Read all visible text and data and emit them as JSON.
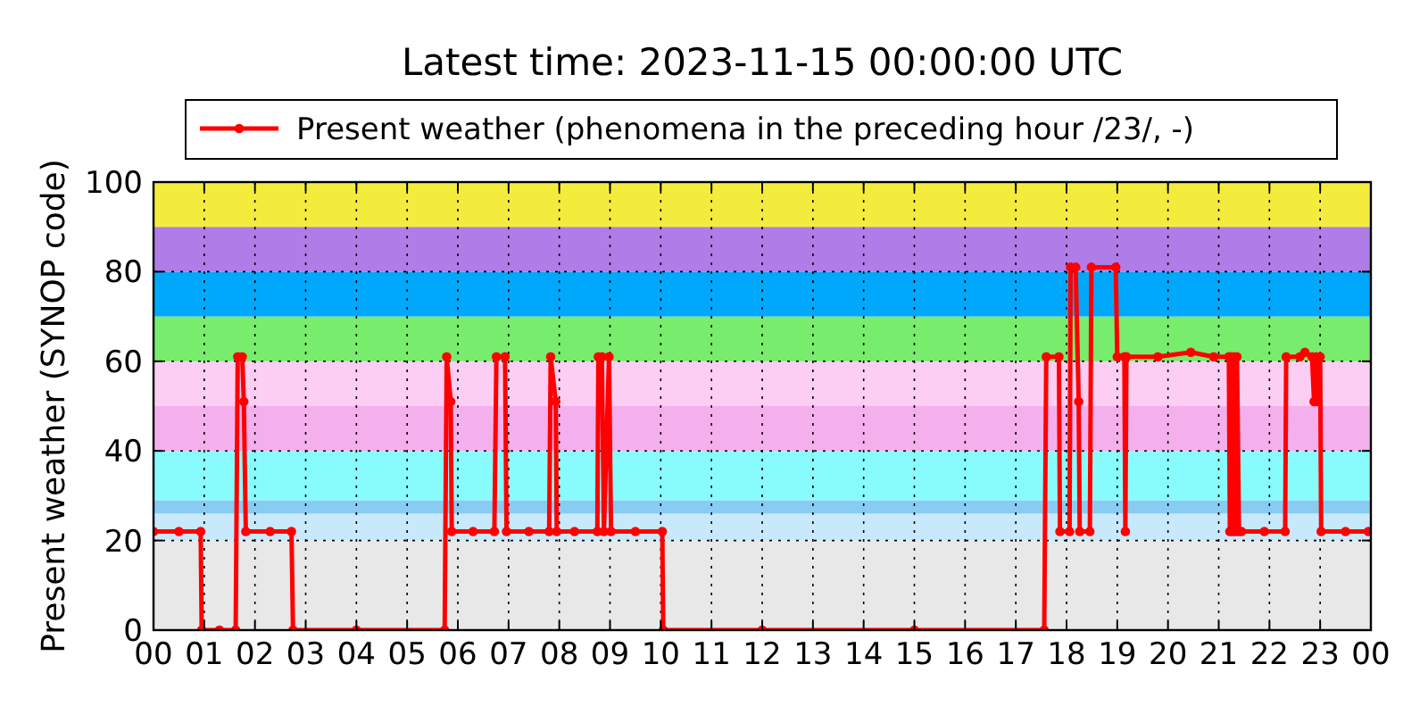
{
  "chart_data": {
    "type": "line",
    "title": "Latest time: 2023-11-15 00:00:00 UTC",
    "ylabel": "Present weather (SYNOP code)",
    "xlim": [
      0,
      24
    ],
    "ylim": [
      0,
      100
    ],
    "yticks": [
      0,
      20,
      40,
      60,
      80,
      100
    ],
    "xticks": [
      {
        "value": 0,
        "label": "00"
      },
      {
        "value": 1,
        "label": "01"
      },
      {
        "value": 2,
        "label": "02"
      },
      {
        "value": 3,
        "label": "03"
      },
      {
        "value": 4,
        "label": "04"
      },
      {
        "value": 5,
        "label": "05"
      },
      {
        "value": 6,
        "label": "06"
      },
      {
        "value": 7,
        "label": "07"
      },
      {
        "value": 8,
        "label": "08"
      },
      {
        "value": 9,
        "label": "09"
      },
      {
        "value": 10,
        "label": "10"
      },
      {
        "value": 11,
        "label": "11"
      },
      {
        "value": 12,
        "label": "12"
      },
      {
        "value": 13,
        "label": "13"
      },
      {
        "value": 14,
        "label": "14"
      },
      {
        "value": 15,
        "label": "15"
      },
      {
        "value": 16,
        "label": "16"
      },
      {
        "value": 17,
        "label": "17"
      },
      {
        "value": 18,
        "label": "18"
      },
      {
        "value": 19,
        "label": "19"
      },
      {
        "value": 20,
        "label": "20"
      },
      {
        "value": 21,
        "label": "21"
      },
      {
        "value": 22,
        "label": "22"
      },
      {
        "value": 23,
        "label": "23"
      },
      {
        "value": 24,
        "label": "00"
      }
    ],
    "grid": true,
    "legend": "top",
    "marker": "circle",
    "line_style": "solid",
    "bands": [
      {
        "axis": "y",
        "from": 0,
        "to": 20,
        "color": "#e8e8e8"
      },
      {
        "axis": "y",
        "from": 20,
        "to": 26,
        "color": "#c8e8fc"
      },
      {
        "axis": "y",
        "from": 26,
        "to": 29,
        "color": "#88ccf4"
      },
      {
        "axis": "y",
        "from": 29,
        "to": 40,
        "color": "#88fcfc"
      },
      {
        "axis": "y",
        "from": 40,
        "to": 50,
        "color": "#f4b0ec"
      },
      {
        "axis": "y",
        "from": 50,
        "to": 60,
        "color": "#fccef4"
      },
      {
        "axis": "y",
        "from": 60,
        "to": 70,
        "color": "#78ec6c"
      },
      {
        "axis": "y",
        "from": 70,
        "to": 80,
        "color": "#00a8fc"
      },
      {
        "axis": "y",
        "from": 80,
        "to": 90,
        "color": "#b07ce8"
      },
      {
        "axis": "y",
        "from": 90,
        "to": 100,
        "color": "#f4ec3c"
      }
    ],
    "series": [
      {
        "name": "Present weather (phenomena in the preceding hour /23/, -)",
        "color": "#ff0000",
        "x": [
          0,
          0.5,
          0.93,
          0.95,
          1.3,
          1.62,
          1.66,
          1.75,
          1.78,
          1.82,
          2.3,
          2.72,
          2.75,
          4,
          5.74,
          5.78,
          5.86,
          5.88,
          6.3,
          6.72,
          6.76,
          6.93,
          6.96,
          7.4,
          7.8,
          7.83,
          7.93,
          7.95,
          8.3,
          8.75,
          8.77,
          8.84,
          8.88,
          8.98,
          9.02,
          9.5,
          10.03,
          10.05,
          12,
          15,
          17.56,
          17.6,
          17.85,
          17.87,
          18.06,
          18.08,
          18.18,
          18.24,
          18.26,
          18.46,
          18.49,
          18.97,
          19.0,
          19.14,
          19.16,
          19.18,
          19.8,
          20.45,
          20.9,
          21.2,
          21.22,
          21.24,
          21.28,
          21.3,
          21.34,
          21.36,
          21.4,
          21.45,
          21.9,
          22.31,
          22.33,
          22.6,
          22.7,
          22.84,
          22.88,
          22.92,
          22.96,
          23.0,
          23.02,
          23.5,
          23.95
        ],
        "values": [
          22,
          22,
          22,
          0,
          0,
          0,
          61,
          61,
          51,
          22,
          22,
          22,
          0,
          0,
          0,
          61,
          51,
          22,
          22,
          22,
          61,
          61,
          22,
          22,
          22,
          61,
          51,
          22,
          22,
          22,
          61,
          61,
          22,
          61,
          22,
          22,
          22,
          0,
          0,
          0,
          0,
          61,
          61,
          22,
          22,
          81,
          81,
          51,
          22,
          22,
          81,
          81,
          61,
          61,
          22,
          61,
          61,
          62,
          61,
          61,
          22,
          61,
          22,
          61,
          22,
          61,
          22,
          22,
          22,
          22,
          61,
          61,
          62,
          61,
          51,
          61,
          51,
          61,
          22,
          22,
          22
        ]
      }
    ]
  }
}
